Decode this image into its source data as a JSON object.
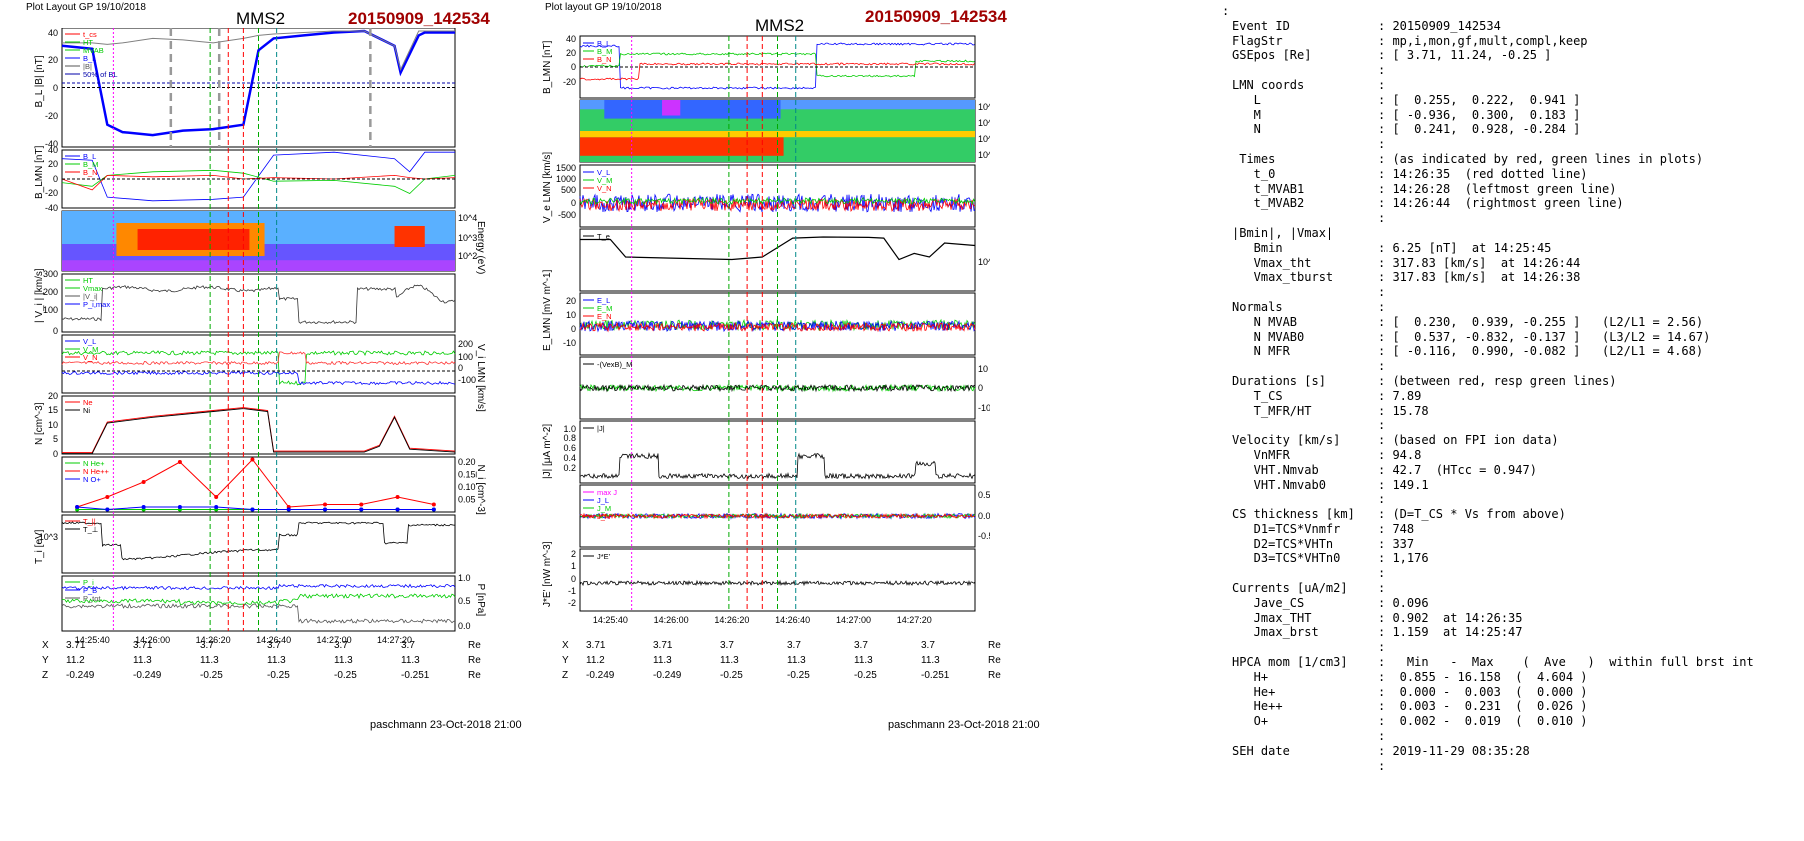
{
  "left_panel": {
    "header": "Plot Layout GP 19/10/2018",
    "spacecraft": "MMS2",
    "event": "20150909_142534",
    "footer": "paschmann 23-Oct-2018 21:00",
    "time_ticks": [
      "14:25:40",
      "14:26:00",
      "14:26:20",
      "14:26:40",
      "14:27:00",
      "14:27:20"
    ],
    "positions": {
      "X": [
        "3.71",
        "3.71",
        "3.7",
        "3.7",
        "3.7",
        "3.7"
      ],
      "Y": [
        "11.2",
        "11.3",
        "11.3",
        "11.3",
        "11.3",
        "11.3"
      ],
      "Z": [
        "-0.249",
        "-0.249",
        "-0.25",
        "-0.25",
        "-0.25",
        "-0.251"
      ],
      "unit": "Re"
    },
    "ylabels": [
      "B_L |B| [nT]",
      "B_LMN [nT]",
      "Energy (eV)",
      "| V_i | [km/s]",
      "V_i LMN [km/s]",
      "N [cm^-3]",
      "N_i [cm^-3]",
      "T_i [eV]",
      "P [nPa]"
    ],
    "legends": {
      "p1": [
        "t_cs",
        "HT",
        "MVAB",
        "B_L",
        "|B|",
        "50% of BL"
      ],
      "p2": [
        "B_L",
        "B_M",
        "B_N"
      ],
      "p4": [
        "HT",
        "Vmax",
        "|V_i|",
        "P_i,max"
      ],
      "p5": [
        "V_L",
        "V_M",
        "V_N"
      ],
      "p6": [
        "Ne",
        "Ni"
      ],
      "p7": [
        "N  He+",
        "N  He++",
        "N  O+"
      ],
      "p8": [
        "T_||",
        "T_⊥"
      ],
      "p9": [
        "P_i",
        "P_B",
        "P_tot"
      ]
    }
  },
  "right_panel": {
    "header": "Plot layout GP 19/10/2018",
    "spacecraft": "MMS2",
    "event": "20150909_142534",
    "footer": "paschmann 23-Oct-2018 21:00",
    "time_ticks": [
      "14:25:40",
      "14:26:00",
      "14:26:20",
      "14:26:40",
      "14:27:00",
      "14:27:20"
    ],
    "positions": {
      "X": [
        "3.71",
        "3.71",
        "3.7",
        "3.7",
        "3.7",
        "3.7"
      ],
      "Y": [
        "11.2",
        "11.3",
        "11.3",
        "11.3",
        "11.3",
        "11.3"
      ],
      "Z": [
        "-0.249",
        "-0.249",
        "-0.25",
        "-0.25",
        "-0.25",
        "-0.251"
      ],
      "unit": "Re"
    },
    "ylabels": [
      "B_LMN [nT]",
      "Energy (eV)",
      "V_e LMN [km/s]",
      "T_e [eV]",
      "E_LMN [mV m^-1]",
      "E_M [mV m^-1]",
      "|J| [μA m^-2]",
      "J [μA m^-2]",
      "J*E' [nW m^-3]"
    ],
    "legends": {
      "p1": [
        "B_L",
        "B_M",
        "B_N"
      ],
      "p3": [
        "V_L",
        "V_M",
        "V_N"
      ],
      "p4": [
        "T_e"
      ],
      "p5": [
        "E_L",
        "E_M",
        "E_N"
      ],
      "p6": [
        "-(VexB)_M"
      ],
      "p7": [
        "|J|"
      ],
      "p8": [
        "max J",
        "J_L",
        "J_M",
        "J_N"
      ],
      "p9": [
        "J*E'"
      ]
    }
  },
  "info_lines": [
    [
      ":",
      ""
    ],
    [
      "Event ID",
      ": 20150909_142534"
    ],
    [
      "FlagStr",
      ": mp,i,mon,gf,mult,compl,keep"
    ],
    [
      "GSEpos [Re]",
      ": [ 3.71, 11.24, -0.25 ]"
    ],
    [
      "",
      ":"
    ],
    [
      "LMN coords",
      ":"
    ],
    [
      "   L",
      ": [  0.255,  0.222,  0.941 ]"
    ],
    [
      "   M",
      ": [ -0.936,  0.300,  0.183 ]"
    ],
    [
      "   N",
      ": [  0.241,  0.928, -0.284 ]"
    ],
    [
      "",
      ":"
    ],
    [
      " Times",
      ": (as indicated by red, green lines in plots)"
    ],
    [
      "   t_0",
      ": 14:26:35  (red dotted line)"
    ],
    [
      "   t_MVAB1",
      ": 14:26:28  (leftmost green line)"
    ],
    [
      "   t_MVAB2",
      ": 14:26:44  (rightmost green line)"
    ],
    [
      "",
      ":"
    ],
    [
      "|Bmin|, |Vmax|",
      ""
    ],
    [
      "   Bmin",
      ": 6.25 [nT]  at 14:25:45"
    ],
    [
      "   Vmax_tht",
      ": 317.83 [km/s]  at 14:26:44"
    ],
    [
      "   Vmax_tburst",
      ": 317.83 [km/s]  at 14:26:38"
    ],
    [
      "",
      ":"
    ],
    [
      "Normals",
      ":"
    ],
    [
      "   N MVAB",
      ": [  0.230,  0.939, -0.255 ]   (L2/L1 = 2.56)"
    ],
    [
      "   N MVAB0",
      ": [  0.537, -0.832, -0.137 ]   (L3/L2 = 14.67)"
    ],
    [
      "   N MFR",
      ": [ -0.116,  0.990, -0.082 ]   (L2/L1 = 4.68)"
    ],
    [
      "",
      ":"
    ],
    [
      "Durations [s]",
      ": (between red, resp green lines)"
    ],
    [
      "   T_CS",
      ": 7.89"
    ],
    [
      "   T_MFR/HT",
      ": 15.78"
    ],
    [
      "",
      ":"
    ],
    [
      "Velocity [km/s]",
      ": (based on FPI ion data)"
    ],
    [
      "   VnMFR",
      ": 94.8"
    ],
    [
      "   VHT.Nmvab",
      ": 42.7  (HTcc = 0.947)"
    ],
    [
      "   VHT.Nmvab0",
      ": 149.1"
    ],
    [
      "",
      ":"
    ],
    [
      "CS thickness [km]",
      ": (D=T_CS * Vs from above)"
    ],
    [
      "   D1=TCS*Vnmfr",
      ": 748"
    ],
    [
      "   D2=TCS*VHTn",
      ": 337"
    ],
    [
      "   D3=TCS*VHTn0",
      ": 1,176"
    ],
    [
      "",
      ":"
    ],
    [
      "Currents [uA/m2]",
      ":"
    ],
    [
      "   Jave_CS",
      ": 0.096"
    ],
    [
      "   Jmax_THT",
      ": 0.902  at 14:26:35"
    ],
    [
      "   Jmax_brst",
      ": 1.159  at 14:25:47"
    ],
    [
      "",
      ":"
    ],
    [
      "HPCA mom [1/cm3]",
      ":   Min   -  Max    (  Ave   )  within full brst int"
    ],
    [
      "   H+",
      ":  0.855 - 16.158  (  4.604 )"
    ],
    [
      "   He+",
      ":  0.000 -  0.003  (  0.000 )"
    ],
    [
      "   He++",
      ":  0.003 -  0.231  (  0.026 )"
    ],
    [
      "   O+",
      ":  0.002 -  0.019  (  0.010 )"
    ],
    [
      "",
      ":"
    ],
    [
      "SEH date",
      ": 2019-11-29 08:35:28"
    ],
    [
      "",
      ":"
    ]
  ],
  "chart_data": [
    {
      "type": "line",
      "panel": "left-1",
      "ylabel": "B_L |B| [nT]",
      "ylim": [
        -40,
        40
      ],
      "x_seconds_from_14:25:30": [
        0,
        10,
        15,
        20,
        30,
        40,
        50,
        60,
        65,
        70,
        80,
        90,
        100,
        110,
        112,
        118,
        120,
        130
      ],
      "series": [
        {
          "name": "B_L",
          "color": "#0000ff",
          "values": [
            28,
            26,
            -25,
            -30,
            -32,
            -29,
            -28,
            -25,
            25,
            33,
            35,
            37,
            38,
            28,
            10,
            35,
            37,
            37
          ]
        },
        {
          "name": "|B|",
          "color": "#808080",
          "values": [
            30,
            30,
            29,
            30,
            33,
            32,
            30,
            33,
            35,
            36,
            37,
            38,
            38,
            28,
            12,
            38,
            38,
            38
          ]
        }
      ]
    },
    {
      "type": "line",
      "panel": "left-2",
      "ylabel": "B_LMN [nT]",
      "ylim": [
        -40,
        40
      ],
      "x_seconds_from_14:25:30": [
        0,
        10,
        15,
        30,
        50,
        60,
        70,
        90,
        110,
        115,
        120,
        130
      ],
      "series": [
        {
          "name": "B_L",
          "color": "#0000ff",
          "values": [
            28,
            26,
            -25,
            -30,
            -28,
            -25,
            33,
            37,
            28,
            10,
            37,
            37
          ]
        },
        {
          "name": "B_M",
          "color": "#00cc00",
          "values": [
            -5,
            -10,
            5,
            10,
            12,
            8,
            -3,
            -2,
            -10,
            -20,
            0,
            5
          ]
        },
        {
          "name": "B_N",
          "color": "#ff0000",
          "values": [
            0,
            -15,
            5,
            3,
            5,
            0,
            2,
            0,
            5,
            2,
            0,
            2
          ]
        }
      ]
    },
    {
      "type": "line",
      "panel": "left-6",
      "ylabel": "N [cm^-3]",
      "ylim": [
        0,
        20
      ],
      "x_seconds_from_14:25:30": [
        0,
        10,
        15,
        30,
        50,
        60,
        68,
        70,
        100,
        105,
        110,
        115,
        130
      ],
      "series": [
        {
          "name": "Ne",
          "color": "#ff0000",
          "values": [
            0.5,
            0.5,
            11,
            13,
            15,
            16,
            15,
            1,
            1,
            3,
            13,
            2,
            1
          ]
        },
        {
          "name": "Ni",
          "color": "#000000",
          "values": [
            0.5,
            0.5,
            11,
            13,
            15,
            16,
            15,
            1,
            1,
            3,
            13,
            2,
            1
          ]
        }
      ]
    },
    {
      "type": "line",
      "panel": "left-7",
      "ylabel": "N_i [cm^-3]",
      "ylim": [
        0,
        0.22
      ],
      "x_seconds_from_14:25:30": [
        5,
        15,
        27,
        39,
        51,
        63,
        75,
        87,
        99,
        111,
        123
      ],
      "series": [
        {
          "name": "N  He+",
          "color": "#00cc00",
          "values": [
            0.01,
            0.01,
            0.01,
            0.01,
            0.01,
            0.01,
            0.01,
            0.01,
            0.01,
            0.01,
            0.01
          ]
        },
        {
          "name": "N  He++",
          "color": "#ff0000",
          "values": [
            0.02,
            0.06,
            0.12,
            0.2,
            0.06,
            0.21,
            0.02,
            0.03,
            0.03,
            0.06,
            0.03
          ]
        },
        {
          "name": "N  O+",
          "color": "#0000ff",
          "values": [
            0.02,
            0.01,
            0.02,
            0.02,
            0.02,
            0.01,
            0.01,
            0.01,
            0.01,
            0.01,
            0.01
          ]
        }
      ]
    },
    {
      "type": "line",
      "panel": "right-4",
      "ylabel": "T_e [eV]",
      "x_seconds_from_14:25:30": [
        0,
        10,
        15,
        30,
        50,
        60,
        70,
        80,
        95,
        100,
        105,
        110,
        115,
        120,
        130
      ],
      "series": [
        {
          "name": "T_e",
          "color": "#000000",
          "values": [
            300,
            300,
            40,
            35,
            30,
            40,
            350,
            400,
            380,
            350,
            30,
            60,
            40,
            200,
            150
          ]
        }
      ]
    }
  ]
}
